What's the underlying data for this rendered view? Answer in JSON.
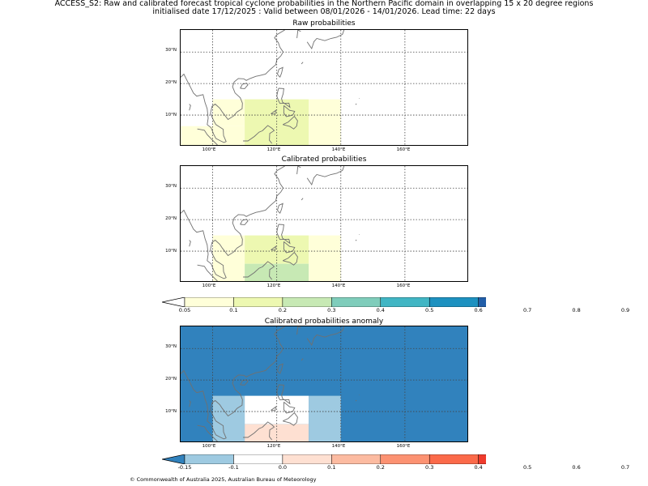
{
  "title_line1": "ACCESS_S2: Raw and calibrated forecast tropical cyclone probabilities in the Northern Pacific domain in overlapping 15 x 20 degree regions",
  "title_line2": "initialised date 17/12/2025 :  Valid between 08/01/2026 - 14/01/2026. Lead time: 22 days",
  "lon_labels": [
    "100°E",
    "120°E",
    "140°E",
    "160°E"
  ],
  "lat_labels": [
    "30°N",
    "20°N",
    "10°N"
  ],
  "panels": [
    {
      "title": "Raw probabilities"
    },
    {
      "title": "Calibrated probabilities"
    },
    {
      "title": "Calibrated probabilities anomaly"
    }
  ],
  "colorbar1": {
    "labels": [
      "0.05",
      "0.1",
      "0.2",
      "0.3",
      "0.4",
      "0.5",
      "0.6",
      "0.7",
      "0.8",
      "0.9"
    ],
    "colors": [
      "#ffffd9",
      "#edf8b1",
      "#c7e9b4",
      "#7fcdbb",
      "#41b6c4",
      "#1d91c0",
      "#225ea8",
      "#253494",
      "#081d58"
    ],
    "under_color": "#ffffff",
    "over_color": "#081d58"
  },
  "colorbar2": {
    "labels": [
      "-0.15",
      "-0.1",
      "0.0",
      "0.1",
      "0.2",
      "0.3",
      "0.4",
      "0.5",
      "0.6",
      "0.7"
    ],
    "colors": [
      "#9ecae1",
      "#ffffff",
      "#fee0d2",
      "#fcbba1",
      "#fc9272",
      "#fb6a4a",
      "#ef3b2c",
      "#cb181d",
      "#a50f15"
    ],
    "under_color": "#3182bd",
    "over_color": "#67000d"
  },
  "chart_data": {
    "type": "heatmap",
    "lon_range": [
      90,
      180
    ],
    "lat_range": [
      0,
      37
    ],
    "grid": true,
    "panels": [
      {
        "title": "Raw probabilities",
        "regions": [
          {
            "lon": [
              90,
              110
            ],
            "lat": [
              0,
              6.5
            ],
            "value": 0.07
          },
          {
            "lon": [
              100,
              120
            ],
            "lat": [
              6.5,
              15
            ],
            "value": 0.07
          },
          {
            "lon": [
              110,
              130
            ],
            "lat": [
              0,
              15
            ],
            "value": 0.15
          },
          {
            "lon": [
              130,
              140
            ],
            "lat": [
              0,
              15
            ],
            "value": 0.07
          }
        ]
      },
      {
        "title": "Calibrated probabilities",
        "regions": [
          {
            "lon": [
              100,
              110
            ],
            "lat": [
              0,
              15
            ],
            "value": 0.07
          },
          {
            "lon": [
              110,
              130
            ],
            "lat": [
              6,
              15
            ],
            "value": 0.15
          },
          {
            "lon": [
              110,
              130
            ],
            "lat": [
              0,
              6
            ],
            "value": 0.22
          },
          {
            "lon": [
              130,
              140
            ],
            "lat": [
              0,
              15
            ],
            "value": 0.07
          }
        ]
      },
      {
        "title": "Calibrated probabilities anomaly",
        "background_value": -0.2,
        "regions": [
          {
            "lon": [
              100,
              110
            ],
            "lat": [
              0,
              15
            ],
            "value": -0.12
          },
          {
            "lon": [
              110,
              130
            ],
            "lat": [
              6,
              15
            ],
            "value": -0.05
          },
          {
            "lon": [
              110,
              130
            ],
            "lat": [
              0,
              6
            ],
            "value": 0.05
          },
          {
            "lon": [
              130,
              140
            ],
            "lat": [
              0,
              15
            ],
            "value": -0.12
          }
        ]
      }
    ]
  },
  "footer": "© Commonwealth of Australia 2025, Australian Bureau of Meteorology"
}
